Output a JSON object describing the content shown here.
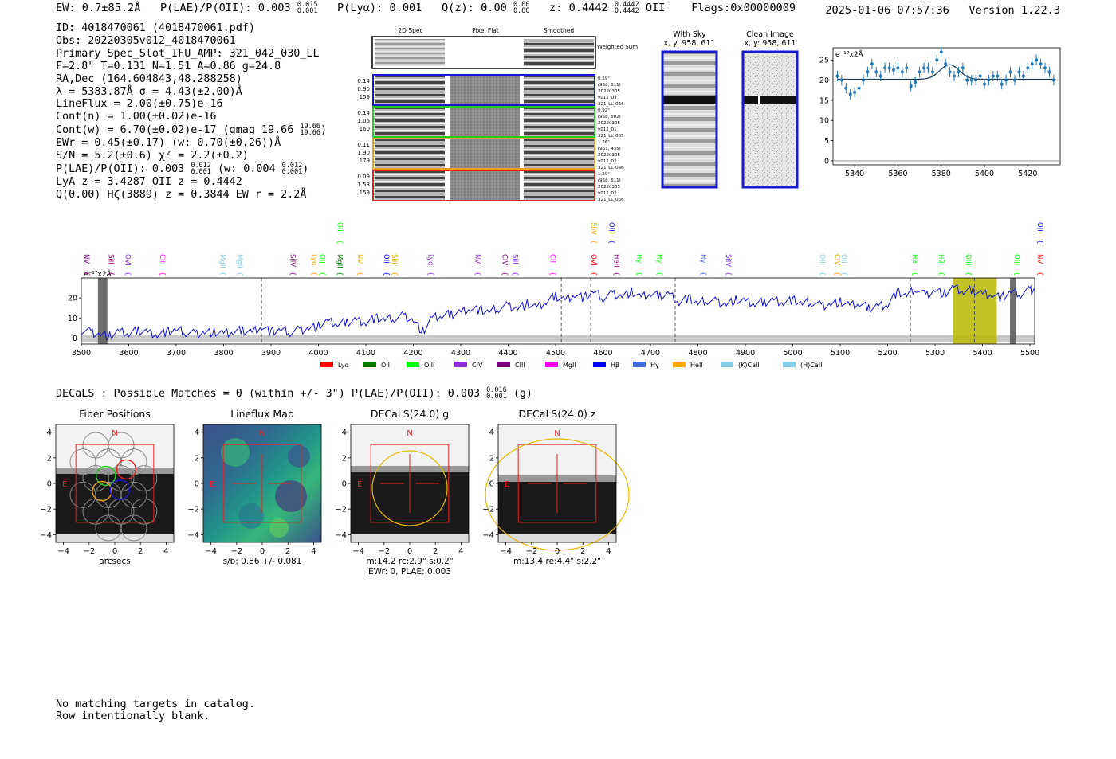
{
  "header": {
    "ew_label": "EW: 0.7±85.2",
    "ew_unit": "Å",
    "plae_label": "P(LAE)/P(OII): 0.003",
    "plae_hi": "0.015",
    "plae_lo": "0.001",
    "plya_label": "P(Lyα): 0.001",
    "qz_label": "Q(z): 0.00",
    "qz_hi": "0.00",
    "qz_lo": "0.00",
    "z_label": "z: 0.4442",
    "z_hi": "0.4442",
    "z_lo": "0.4442",
    "z_line": "OII",
    "flags": "Flags:0x00000009",
    "timestamp": "2025-01-06 07:57:36",
    "version": "Version 1.22.3"
  },
  "info": {
    "id": "ID: 4018470061 (4018470061.pdf)",
    "obs": "Obs: 20220305v012_4018470061",
    "primary": "Primary Spec_Slot_IFU_AMP: 321_042_030_LL",
    "fit": "F=2.8\"  T=0.131  N=1.51  A=0.86  g=24.8",
    "radec": "RA,Dec (164.604843,48.288258)",
    "lambda": "λ = 5383.87Å  σ = 4.43(±2.00)Å",
    "lineflux": "LineFlux = 2.00(±0.75)e-16",
    "contn": "Cont(n) = 1.00(±0.02)e-16",
    "contw": "Cont(w) = 6.70(±0.02)e-17 (gmag 19.66",
    "contw_hi": "19.66",
    "contw_lo": "19.66",
    "ewr": "EWr = 0.45(±0.17) (w: 0.70(±0.26))Å",
    "sn": "S/N = 5.2(±0.6)  χ² = 2.2(±0.2)",
    "plae": "P(LAE)/P(OII): 0.003",
    "plae_hi": "0.012",
    "plae_lo": "0.001",
    "plae_w": "(w: 0.004",
    "plae_w_hi": "0.012",
    "plae_w_lo": "0.001",
    "lya": "LyA z = 3.4287  OII z = 0.4442",
    "q": "Q(0.00) Hζ(3889) z = 0.3844  EW r = 2.2Å"
  },
  "cutouts": {
    "col_titles": [
      "2D Spec",
      "Pixel Flat",
      "Smoothed"
    ],
    "weighted_sum": "Weighted Sum",
    "rows": [
      {
        "left": [
          "0.14",
          "0.90",
          "159"
        ],
        "right": [
          "0.59\"",
          "(958, 611)",
          "20220305",
          "v012_03",
          "321_LL_066"
        ],
        "color": "#1a1acc"
      },
      {
        "left": [
          "0.14",
          "1.06",
          "160"
        ],
        "right": [
          "0.92\"",
          "(958, 602)",
          "20220305",
          "v012_01",
          "321_LL_065"
        ],
        "color": "#22cc22"
      },
      {
        "left": [
          "0.11",
          "1.90",
          "179"
        ],
        "right": [
          "1.26\"",
          "(961, 435)",
          "20220305",
          "v012_02",
          "321_LL_046"
        ],
        "color": "#e8a020"
      },
      {
        "left": [
          "0.09",
          "1.53",
          "159"
        ],
        "right": [
          "1.29\"",
          "(958, 611)",
          "20220305",
          "v012_02",
          "321_LL_066"
        ],
        "color": "#dd2222"
      }
    ]
  },
  "sky": {
    "with_sky_title": "With Sky",
    "with_sky_xy": "x, y: 958, 611",
    "clean_title": "Clean Image",
    "clean_xy": "x, y: 958, 611"
  },
  "chart_data": [
    {
      "type": "scatter",
      "name": "zoom-spectrum",
      "ylabel": "e⁻¹⁷x2Å",
      "xlim": [
        5330,
        5435
      ],
      "ylim": [
        -1,
        28
      ],
      "xticks": [
        5340,
        5360,
        5380,
        5400,
        5420
      ],
      "yticks": [
        0,
        5,
        10,
        15,
        20,
        25
      ],
      "x": [
        5332,
        5334,
        5336,
        5338,
        5340,
        5342,
        5344,
        5346,
        5348,
        5350,
        5352,
        5354,
        5356,
        5358,
        5360,
        5362,
        5364,
        5366,
        5368,
        5370,
        5372,
        5374,
        5376,
        5378,
        5380,
        5382,
        5384,
        5386,
        5388,
        5390,
        5392,
        5394,
        5396,
        5398,
        5400,
        5402,
        5404,
        5406,
        5408,
        5410,
        5412,
        5414,
        5416,
        5418,
        5420,
        5422,
        5424,
        5426,
        5428,
        5430,
        5432
      ],
      "y": [
        21,
        20,
        18,
        16.5,
        17,
        18,
        20,
        22,
        24,
        22,
        21,
        23,
        23,
        22.5,
        23,
        22,
        23,
        18.5,
        19.5,
        22,
        23,
        23,
        22,
        25,
        27,
        24,
        22,
        21,
        22,
        23,
        20,
        20,
        20,
        21,
        19,
        20,
        21,
        21,
        19,
        20,
        22,
        20,
        22,
        21,
        23,
        24,
        25,
        24,
        23,
        22,
        20
      ],
      "fit": {
        "continuum": 20.2,
        "amplitude": 3.6,
        "center": 5383.87,
        "sigma": 4.43
      },
      "errorbar": 1.3
    },
    {
      "type": "line",
      "name": "full-spectrum",
      "ylabel": "e⁻¹⁷x2Å",
      "xlim": [
        3500,
        5510
      ],
      "ylim": [
        -3,
        30
      ],
      "xticks": [
        3500,
        3600,
        3700,
        3800,
        3900,
        4000,
        4100,
        4200,
        4300,
        4400,
        4500,
        4600,
        4700,
        4800,
        4900,
        5000,
        5100,
        5200,
        5300,
        5400,
        5500
      ],
      "yticks": [
        0,
        10,
        20
      ],
      "x": [
        3500,
        3520,
        3540,
        3560,
        3580,
        3600,
        3620,
        3640,
        3660,
        3680,
        3700,
        3720,
        3740,
        3760,
        3780,
        3800,
        3820,
        3840,
        3860,
        3880,
        3900,
        3920,
        3940,
        3960,
        3980,
        4000,
        4020,
        4040,
        4060,
        4080,
        4100,
        4120,
        4140,
        4160,
        4180,
        4200,
        4220,
        4240,
        4260,
        4280,
        4300,
        4320,
        4340,
        4360,
        4380,
        4400,
        4420,
        4440,
        4460,
        4480,
        4500,
        4520,
        4540,
        4560,
        4580,
        4600,
        4620,
        4640,
        4660,
        4680,
        4700,
        4720,
        4740,
        4760,
        4780,
        4800,
        4820,
        4840,
        4860,
        4880,
        4900,
        4920,
        4940,
        4960,
        4980,
        5000,
        5020,
        5040,
        5060,
        5080,
        5100,
        5120,
        5140,
        5160,
        5180,
        5200,
        5220,
        5240,
        5260,
        5280,
        5300,
        5320,
        5340,
        5360,
        5380,
        5400,
        5420,
        5440,
        5460,
        5480,
        5500,
        5510
      ],
      "y": [
        4,
        3,
        2,
        1,
        3,
        2,
        4,
        3,
        2,
        3,
        4,
        3,
        2,
        3,
        3,
        2,
        3,
        4,
        3,
        6,
        3,
        4,
        3,
        4,
        5,
        6,
        8,
        7,
        8,
        9,
        8,
        10,
        9,
        10,
        11,
        9,
        3,
        10,
        11,
        12,
        13,
        15,
        14,
        13,
        15,
        16,
        15,
        17,
        15,
        18,
        21,
        19,
        22,
        20,
        23,
        20,
        22,
        21,
        23,
        20,
        22,
        21,
        22,
        18,
        20,
        17,
        19,
        18,
        17,
        19,
        18,
        17,
        18,
        19,
        18,
        19,
        17,
        18,
        16,
        17,
        18,
        16,
        17,
        15,
        16,
        17,
        23,
        21,
        25,
        21,
        24,
        22,
        25,
        23,
        24,
        22,
        22,
        20,
        23,
        22,
        24,
        24
      ],
      "shaded_regions": [
        {
          "x0": 3535,
          "x1": 3555,
          "color": "#555555"
        },
        {
          "x0": 5338,
          "x1": 5430,
          "color": "#b7b700"
        },
        {
          "x0": 5458,
          "x1": 5470,
          "color": "#555555"
        }
      ],
      "dashed_lines": [
        3880,
        4512,
        4574,
        4752,
        5248,
        5383
      ],
      "legend": [
        {
          "label": "Lyα",
          "color": "#ff0000"
        },
        {
          "label": "OII",
          "color": "#008000"
        },
        {
          "label": "OIII",
          "color": "#00ff00"
        },
        {
          "label": "CIV",
          "color": "#8a2be2"
        },
        {
          "label": "CIII",
          "color": "#800080"
        },
        {
          "label": "MgII",
          "color": "#ff00ff"
        },
        {
          "label": "Hβ",
          "color": "#0000ff"
        },
        {
          "label": "Hγ",
          "color": "#4169e1"
        },
        {
          "label": "HeII",
          "color": "#ffa500"
        },
        {
          "label": "(K)CaII",
          "color": "#87ceeb"
        },
        {
          "label": "(H)CaII",
          "color": "#87ceeb"
        }
      ],
      "line_labels": [
        {
          "label": "NV",
          "x": 3500,
          "color": "#800080",
          "tier": 1
        },
        {
          "label": "SiII",
          "x": 3565,
          "color": "#800080",
          "tier": 1
        },
        {
          "label": "OVI",
          "x": 3600,
          "color": "#8a2be2",
          "tier": 1
        },
        {
          "label": "CIII",
          "x": 3673,
          "color": "#ff00ff",
          "tier": 1
        },
        {
          "label": "MgII",
          "x": 3800,
          "color": "#87ceeb",
          "tier": 1
        },
        {
          "label": "MgII",
          "x": 3836,
          "color": "#87ceeb",
          "tier": 1
        },
        {
          "label": "SiIV",
          "x": 3948,
          "color": "#800080",
          "tier": 1
        },
        {
          "label": "Lyα",
          "x": 3993,
          "color": "#ffa500",
          "tier": 1
        },
        {
          "label": "OII",
          "x": 4010,
          "color": "#00ff00",
          "tier": 1
        },
        {
          "label": "MgII",
          "x": 4047,
          "color": "#008000",
          "tier": 1
        },
        {
          "label": "OII",
          "x": 4047,
          "color": "#00ff00",
          "tier": 0
        },
        {
          "label": "NV",
          "x": 4090,
          "color": "#ffa500",
          "tier": 1
        },
        {
          "label": "OII",
          "x": 4145,
          "color": "#0000ff",
          "tier": 1
        },
        {
          "label": "SiII",
          "x": 4162,
          "color": "#ffa500",
          "tier": 1
        },
        {
          "label": "Lyα",
          "x": 4239,
          "color": "#8a2be2",
          "tier": 1
        },
        {
          "label": "NV",
          "x": 4338,
          "color": "#8a2be2",
          "tier": 1
        },
        {
          "label": "CIV",
          "x": 4395,
          "color": "#800080",
          "tier": 1
        },
        {
          "label": "SiII",
          "x": 4417,
          "color": "#8a2be2",
          "tier": 1
        },
        {
          "label": "CII",
          "x": 4496,
          "color": "#ff00ff",
          "tier": 1
        },
        {
          "label": "OVI",
          "x": 4582,
          "color": "#ff0000",
          "tier": 1
        },
        {
          "label": "SiIV",
          "x": 4582,
          "color": "#ffa500",
          "tier": 0
        },
        {
          "label": "HeII",
          "x": 4630,
          "color": "#800080",
          "tier": 1
        },
        {
          "label": "OII",
          "x": 4620,
          "color": "#0000ff",
          "tier": 0
        },
        {
          "label": "Hγ",
          "x": 4678,
          "color": "#00ff00",
          "tier": 1
        },
        {
          "label": "Hγ",
          "x": 4721,
          "color": "#00ff00",
          "tier": 1
        },
        {
          "label": "Hγ",
          "x": 4813,
          "color": "#4169e1",
          "tier": 1
        },
        {
          "label": "SiIV",
          "x": 4866,
          "color": "#8a2be2",
          "tier": 1
        },
        {
          "label": "OII",
          "x": 5065,
          "color": "#87ceeb",
          "tier": 1
        },
        {
          "label": "CIV",
          "x": 5096,
          "color": "#ffa500",
          "tier": 1
        },
        {
          "label": "OII",
          "x": 5110,
          "color": "#87ceeb",
          "tier": 1
        },
        {
          "label": "Hβ",
          "x": 5260,
          "color": "#00ff00",
          "tier": 1
        },
        {
          "label": "Hβ",
          "x": 5315,
          "color": "#00ff00",
          "tier": 1
        },
        {
          "label": "OIII",
          "x": 5372,
          "color": "#00ff00",
          "tier": 1
        },
        {
          "label": "OIII",
          "x": 5475,
          "color": "#00ff00",
          "tier": 1
        },
        {
          "label": "NV",
          "x": 5535,
          "color": "#ff0000",
          "tier": 1
        },
        {
          "label": "OII",
          "x": 5535,
          "color": "#0000ff",
          "tier": 0
        }
      ]
    }
  ],
  "decals": {
    "summary": "DECaLS : Possible Matches = 0 (within +/- 3\")  P(LAE)/P(OII): 0.003",
    "summary_hi": "0.016",
    "summary_lo": "0.001",
    "summary_band": "(g)",
    "panels": [
      {
        "title": "Fiber Positions",
        "xlabel": "arcsecs",
        "caption1": "",
        "caption2": ""
      },
      {
        "title": "Lineflux Map",
        "xlabel": "",
        "caption1": "s/b: 0.86 +/- 0.081",
        "caption2": ""
      },
      {
        "title": "DECaLS(24.0) g",
        "xlabel": "",
        "caption1": "m:14.2 rc:2.9\"  s:0.2\"",
        "caption2": "EWr: 0, PLAE: 0.003"
      },
      {
        "title": "DECaLS(24.0) z",
        "xlabel": "",
        "caption1": "m:13.4  re:4.4\"  s:2.2\"",
        "caption2": ""
      }
    ],
    "ticks": [
      "−4",
      "−2",
      "0",
      "2",
      "4"
    ],
    "north_label": "N",
    "east_label": "E"
  },
  "footer": {
    "line1": "No matching targets in catalog.",
    "line2": "Row intentionally blank."
  }
}
